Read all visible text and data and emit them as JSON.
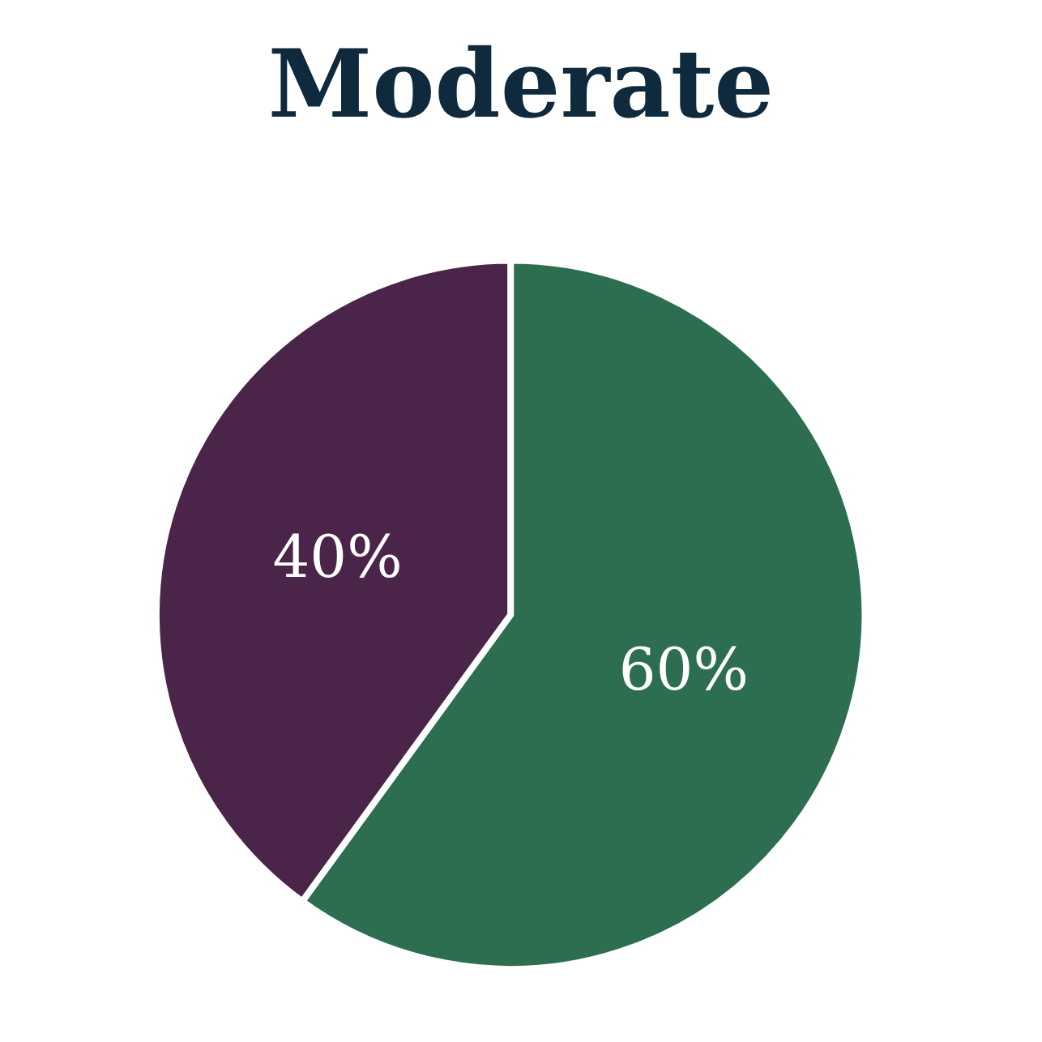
{
  "chart_data": {
    "type": "pie",
    "title": "Moderate",
    "categories": [
      null,
      null
    ],
    "values": [
      60,
      40
    ],
    "colors": [
      "#2d6e50",
      "#4a2549"
    ],
    "value_labels": [
      "60%",
      "40%"
    ]
  }
}
